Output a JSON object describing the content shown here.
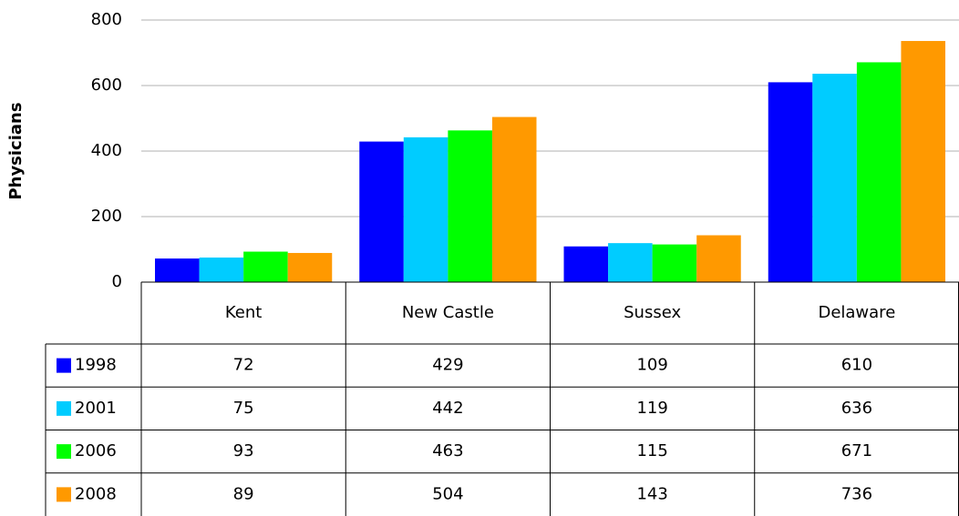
{
  "chart_data": {
    "type": "bar",
    "y_label": "Physicians",
    "categories": [
      "Kent",
      "New Castle",
      "Sussex",
      "Delaware"
    ],
    "series": [
      {
        "name": "1998",
        "color": "#0000ff",
        "values": [
          72,
          429,
          109,
          610
        ]
      },
      {
        "name": "2001",
        "color": "#00ccff",
        "values": [
          75,
          442,
          119,
          636
        ]
      },
      {
        "name": "2006",
        "color": "#00ff00",
        "values": [
          93,
          463,
          115,
          671
        ]
      },
      {
        "name": "2008",
        "color": "#ff9900",
        "values": [
          89,
          504,
          143,
          736
        ]
      }
    ],
    "ylim": [
      0,
      800
    ],
    "yticks": [
      0,
      200,
      400,
      600,
      800
    ],
    "grid": true,
    "data_table": true
  }
}
